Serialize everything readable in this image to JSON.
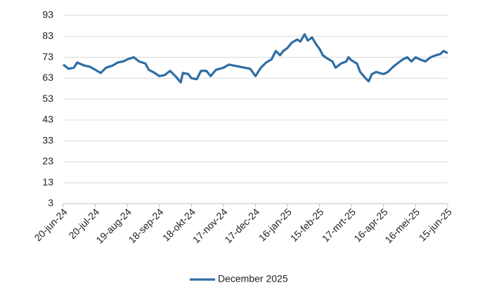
{
  "chart_data": {
    "type": "line",
    "x": [
      "2024-06-20",
      "2024-06-25",
      "2024-06-30",
      "2024-07-03",
      "2024-07-10",
      "2024-07-15",
      "2024-07-20",
      "2024-07-25",
      "2024-07-30",
      "2024-08-05",
      "2024-08-10",
      "2024-08-15",
      "2024-08-19",
      "2024-08-25",
      "2024-08-30",
      "2024-09-05",
      "2024-09-08",
      "2024-09-12",
      "2024-09-18",
      "2024-09-23",
      "2024-09-28",
      "2024-10-03",
      "2024-10-08",
      "2024-10-10",
      "2024-10-15",
      "2024-10-18",
      "2024-10-23",
      "2024-10-27",
      "2024-11-01",
      "2024-11-05",
      "2024-11-10",
      "2024-11-17",
      "2024-11-22",
      "2024-11-27",
      "2024-12-02",
      "2024-12-07",
      "2024-12-12",
      "2024-12-17",
      "2024-12-22",
      "2024-12-27",
      "2025-01-01",
      "2025-01-05",
      "2025-01-09",
      "2025-01-12",
      "2025-01-16",
      "2025-01-20",
      "2025-01-25",
      "2025-01-28",
      "2025-02-01",
      "2025-02-04",
      "2025-02-08",
      "2025-02-12",
      "2025-02-15",
      "2025-02-18",
      "2025-02-22",
      "2025-02-27",
      "2025-03-02",
      "2025-03-07",
      "2025-03-12",
      "2025-03-14",
      "2025-03-17",
      "2025-03-22",
      "2025-03-25",
      "2025-03-30",
      "2025-04-02",
      "2025-04-05",
      "2025-04-09",
      "2025-04-12",
      "2025-04-16",
      "2025-04-20",
      "2025-04-25",
      "2025-04-30",
      "2025-05-04",
      "2025-05-08",
      "2025-05-12",
      "2025-05-16",
      "2025-05-20",
      "2025-05-25",
      "2025-05-30",
      "2025-06-04",
      "2025-06-08",
      "2025-06-11",
      "2025-06-15"
    ],
    "series": [
      {
        "name": "December 2025",
        "color": "#2e6da4",
        "values": [
          69.5,
          67.5,
          68,
          70.5,
          69,
          68.5,
          67,
          65.5,
          68,
          69,
          70.5,
          71,
          72,
          73,
          71,
          70,
          67,
          66,
          64,
          64.5,
          66.5,
          64,
          61,
          65.5,
          65,
          63,
          62.5,
          66.5,
          66.5,
          64,
          67,
          68,
          69.5,
          69,
          68.5,
          68,
          67.5,
          64,
          68,
          70.5,
          72,
          76,
          74,
          76,
          77.5,
          80,
          81.5,
          80.5,
          84,
          81,
          82.5,
          79,
          77,
          74,
          72.5,
          71,
          68,
          70,
          71,
          73,
          71.5,
          70,
          66,
          63,
          61.5,
          65,
          66,
          65.5,
          65,
          66,
          68.5,
          70.5,
          72,
          73,
          71,
          73,
          72,
          71,
          73,
          74,
          74.5,
          76,
          75
        ]
      }
    ],
    "xlim": [
      "2024-06-20",
      "2025-06-15"
    ],
    "xticks": [
      {
        "value": "2024-06-20",
        "label": "20-jun-24"
      },
      {
        "value": "2024-07-20",
        "label": "20-jul-24"
      },
      {
        "value": "2024-08-19",
        "label": "19-aug-24"
      },
      {
        "value": "2024-09-18",
        "label": "18-sep-24"
      },
      {
        "value": "2024-10-18",
        "label": "18-okt-24"
      },
      {
        "value": "2024-11-17",
        "label": "17-nov-24"
      },
      {
        "value": "2024-12-17",
        "label": "17-dec-24"
      },
      {
        "value": "2025-01-16",
        "label": "16-jan-25"
      },
      {
        "value": "2025-02-15",
        "label": "15-feb-25"
      },
      {
        "value": "2025-03-17",
        "label": "17-mrt-25"
      },
      {
        "value": "2025-04-16",
        "label": "16-apr-25"
      },
      {
        "value": "2025-05-16",
        "label": "16-mei-25"
      },
      {
        "value": "2025-06-15",
        "label": "15-jun-25"
      }
    ],
    "ylim": [
      3,
      93
    ],
    "yticks": [
      3,
      13,
      23,
      33,
      43,
      53,
      63,
      73,
      83,
      93
    ],
    "grid": true,
    "legend": "bottom"
  }
}
